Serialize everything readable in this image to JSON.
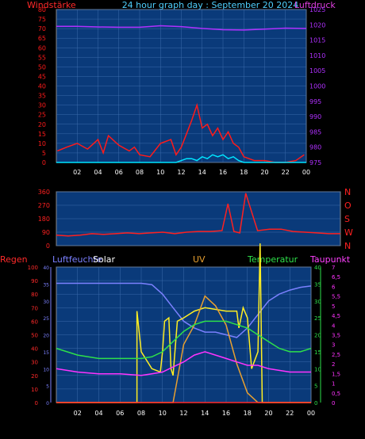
{
  "colors": {
    "background": "#000000",
    "plot": "#0a3a7a",
    "grid": "#3a6aaa",
    "tick": "#000000",
    "wind": "#ff1a1a",
    "gust": "#00e5ff",
    "pressure": "#b030ff",
    "direction": "#ff2020",
    "regen": "#ff2a2a",
    "humidity": "#7b80ff",
    "solar": "#ffee22",
    "uv": "#e8a030",
    "temperature": "#2ee04a",
    "dewpoint": "#ff33ff",
    "x_axis_text": "#ffffff"
  },
  "chart_data": [
    {
      "type": "line",
      "title": "24 hour graph day : September 20 2024",
      "left_label": "Windstärke",
      "right_label": "Luftdruck",
      "x_ticks": [
        "02",
        "04",
        "06",
        "08",
        "10",
        "12",
        "14",
        "16",
        "18",
        "20",
        "22",
        "00"
      ],
      "left_ticks": [
        "0",
        "5",
        "10",
        "15",
        "20",
        "25",
        "30",
        "35",
        "40",
        "45",
        "50",
        "55",
        "60",
        "65",
        "70",
        "75",
        "80"
      ],
      "left_range": [
        0,
        80
      ],
      "right_ticks": [
        "975",
        "980",
        "985",
        "990",
        "995",
        "1000",
        "1005",
        "1010",
        "1015",
        "1020",
        "1025"
      ],
      "right_range": [
        975,
        1025
      ],
      "grid": true,
      "series": [
        {
          "key": "wind",
          "x": [
            0.1,
            1,
            2,
            3,
            4,
            4.5,
            5,
            6,
            7,
            7.5,
            8,
            9,
            10,
            11,
            11.5,
            12,
            12.5,
            13,
            13.5,
            14,
            14.5,
            15,
            15.5,
            16,
            16.5,
            17,
            17.5,
            18,
            18.5,
            19,
            20,
            21,
            22,
            23,
            23.8
          ],
          "y": [
            6,
            8,
            10,
            7,
            12,
            5,
            14,
            9,
            6,
            8,
            4,
            3,
            10,
            12,
            4,
            8,
            15,
            22,
            30,
            18,
            20,
            14,
            18,
            12,
            16,
            10,
            8,
            3,
            2,
            1,
            1,
            0,
            0,
            1,
            4
          ]
        },
        {
          "key": "gust",
          "x": [
            0,
            10,
            11.5,
            12,
            12.5,
            13,
            13.5,
            14,
            14.5,
            15,
            15.5,
            16,
            16.5,
            17,
            17.5,
            18,
            19,
            24
          ],
          "y": [
            0,
            0,
            0,
            1,
            2,
            2,
            1,
            3,
            2,
            4,
            3,
            4,
            2,
            3,
            1,
            0,
            0,
            0
          ]
        },
        {
          "key": "pressure",
          "x": [
            0,
            2,
            4,
            6,
            8,
            10,
            12,
            14,
            16,
            18,
            20,
            22,
            24
          ],
          "y": [
            1019.5,
            1019.5,
            1019.3,
            1019.2,
            1019.2,
            1019.7,
            1019.4,
            1018.8,
            1018.4,
            1018.3,
            1018.6,
            1018.9,
            1018.8
          ]
        }
      ]
    },
    {
      "type": "line",
      "right_labels": [
        "N",
        "W",
        "S",
        "O",
        "N"
      ],
      "left_ticks": [
        "0",
        "90",
        "180",
        "270",
        "360"
      ],
      "left_range": [
        0,
        360
      ],
      "x_ticks": [],
      "grid": true,
      "series": [
        {
          "key": "direction",
          "x": [
            0,
            1,
            2,
            3,
            4,
            5,
            6,
            7,
            8,
            9,
            10,
            11,
            12,
            13,
            14,
            14.5,
            15,
            15.5,
            16,
            17,
            18,
            19,
            20,
            21,
            22,
            23,
            24
          ],
          "y": [
            70,
            65,
            70,
            80,
            75,
            80,
            85,
            80,
            85,
            90,
            80,
            90,
            95,
            95,
            100,
            280,
            95,
            85,
            350,
            100,
            110,
            110,
            95,
            90,
            85,
            80,
            80
          ]
        }
      ]
    },
    {
      "type": "line",
      "labels": {
        "regen": "Regen",
        "humidity": "Luftfeuchte",
        "solar": "Solar",
        "uv": "UV",
        "temperature": "Temperatur",
        "dewpoint": "Taupunkt"
      },
      "x_ticks": [
        "02",
        "04",
        "06",
        "08",
        "10",
        "12",
        "14",
        "16",
        "18",
        "20",
        "22",
        "00"
      ],
      "regen_ticks": [
        "0",
        "10",
        "20",
        "30",
        "40",
        "50",
        "60",
        "70",
        "80",
        "90",
        "100"
      ],
      "regen_range": [
        0,
        100
      ],
      "humidity_ticks": [
        "0",
        "5",
        "10",
        "15",
        "20",
        "25",
        "30",
        "35",
        "40"
      ],
      "humidity_range": [
        0,
        40
      ],
      "temperature_ticks": [
        "0",
        "5",
        "10",
        "15",
        "20",
        "25",
        "30",
        "35",
        "40"
      ],
      "temperature_range": [
        0,
        40
      ],
      "dewpoint_ticks": [
        "0",
        "0,5",
        "1",
        "1,5",
        "2",
        "2,5",
        "3",
        "3,5",
        "4",
        "4,5",
        "5",
        "5,5",
        "6",
        "6,5",
        "7"
      ],
      "dewpoint_range": [
        0,
        7
      ],
      "grid": true,
      "series": [
        {
          "key": "humidity",
          "x": [
            0,
            2,
            4,
            6,
            8,
            9,
            10,
            11,
            12,
            13,
            14,
            15,
            16,
            17,
            18,
            19,
            20,
            21,
            22,
            23,
            24
          ],
          "y": [
            88,
            88,
            88,
            88,
            88,
            87,
            80,
            70,
            60,
            55,
            52,
            52,
            50,
            48,
            55,
            65,
            75,
            80,
            83,
            85,
            86
          ]
        },
        {
          "key": "solar",
          "x": [
            0,
            7.6,
            7.6,
            8,
            9,
            9.8,
            10,
            10.2,
            10.6,
            10.8,
            11,
            11.4,
            12,
            13,
            14,
            16,
            17,
            17.2,
            17.6,
            18,
            18.4,
            19,
            19.2,
            19.4,
            19.6,
            24
          ],
          "y": [
            0,
            0,
            27,
            15,
            10,
            9,
            15,
            24,
            25,
            10,
            8,
            24,
            25,
            27,
            28,
            27,
            27,
            22,
            28,
            25,
            10,
            15,
            47,
            0,
            0,
            0
          ]
        },
        {
          "key": "uv",
          "x": [
            0,
            10,
            11,
            12,
            13,
            14,
            15,
            16,
            17,
            18,
            19,
            20,
            24
          ],
          "y": [
            0,
            0,
            0,
            3,
            4,
            5.5,
            5,
            4,
            2,
            0.5,
            0,
            0,
            0
          ]
        },
        {
          "key": "temperature",
          "x": [
            0,
            2,
            4,
            6,
            8,
            9,
            10,
            11,
            12,
            13,
            14,
            15,
            16,
            17,
            18,
            19,
            20,
            21,
            22,
            23,
            24
          ],
          "y": [
            16,
            14,
            13,
            13,
            13,
            13.5,
            15,
            18,
            21,
            23,
            24,
            24,
            24,
            23,
            22,
            20,
            18,
            16,
            15,
            15,
            16
          ]
        },
        {
          "key": "dewpoint",
          "x": [
            0,
            2,
            4,
            6,
            8,
            9,
            10,
            11,
            12,
            13,
            14,
            15,
            16,
            17,
            18,
            19,
            20,
            21,
            22,
            23,
            24
          ],
          "y": [
            10,
            9,
            8.5,
            8.5,
            8,
            8.5,
            9,
            10.5,
            12,
            14,
            15,
            14,
            13,
            12,
            11,
            11,
            10,
            9.5,
            9,
            9,
            9
          ]
        },
        {
          "key": "regen",
          "x": [
            0,
            24
          ],
          "y": [
            0,
            0
          ]
        }
      ]
    }
  ]
}
